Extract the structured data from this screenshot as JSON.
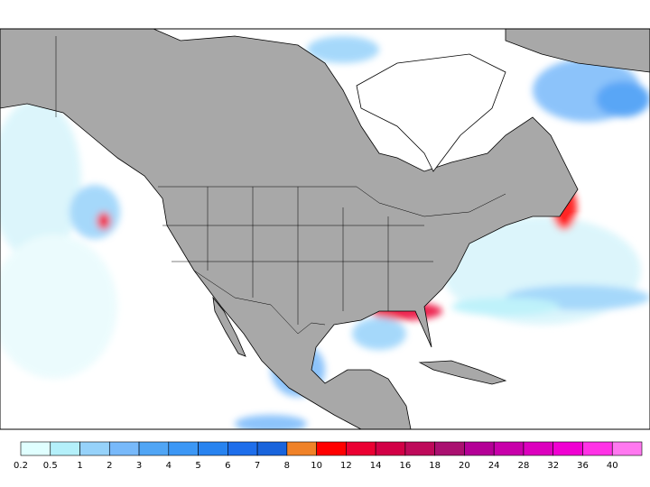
{
  "legend": {
    "ticks": [
      0.2,
      0.5,
      1,
      2,
      3,
      4,
      5,
      6,
      7,
      8,
      10,
      12,
      14,
      16,
      18,
      20,
      24,
      28,
      32,
      36,
      40
    ],
    "colors": [
      "#e0ffff",
      "#b4f0fa",
      "#96d2fa",
      "#78b9fa",
      "#50a5f5",
      "#3c97f5",
      "#2883f0",
      "#1e6eeb",
      "#1964dc",
      "#f08228",
      "#ff0000",
      "#eb0032",
      "#d20046",
      "#be0a5a",
      "#aa1070",
      "#b40096",
      "#c800aa",
      "#dc00be",
      "#f000d2",
      "#ff32e6",
      "#ff78f0"
    ]
  }
}
